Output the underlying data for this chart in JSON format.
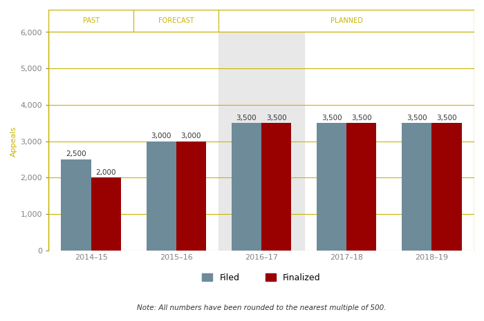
{
  "categories": [
    "2014–15",
    "2015–16",
    "2016–17",
    "2017–18",
    "2018–19"
  ],
  "filed": [
    2500,
    3000,
    3500,
    3500,
    3500
  ],
  "finalized": [
    2000,
    3000,
    3500,
    3500,
    3500
  ],
  "filed_color": "#6e8b9a",
  "finalized_color": "#990000",
  "bar_width": 0.35,
  "ylim": [
    0,
    6000
  ],
  "yticks": [
    0,
    1000,
    2000,
    3000,
    4000,
    5000,
    6000
  ],
  "ylabel": "Appeals",
  "grid_color": "#c8b400",
  "background_color": "#ffffff",
  "plot_bg_color": "#ffffff",
  "section_labels": [
    "PAST",
    "FORECAST",
    "PLANNED"
  ],
  "highlight_col": 2,
  "highlight_color": "#e8e8e8",
  "note_text": "Note: All numbers have been rounded to the nearest multiple of 500.",
  "legend_labels": [
    "Filed",
    "Finalized"
  ],
  "label_fontsize": 7.5,
  "tick_color": "#808080",
  "axis_label_color": "#c8b400",
  "section_label_color": "#c8b400",
  "section_label_fontsize": 7.0,
  "xtick_fontsize": 8,
  "ytick_fontsize": 8,
  "ylabel_fontsize": 8
}
